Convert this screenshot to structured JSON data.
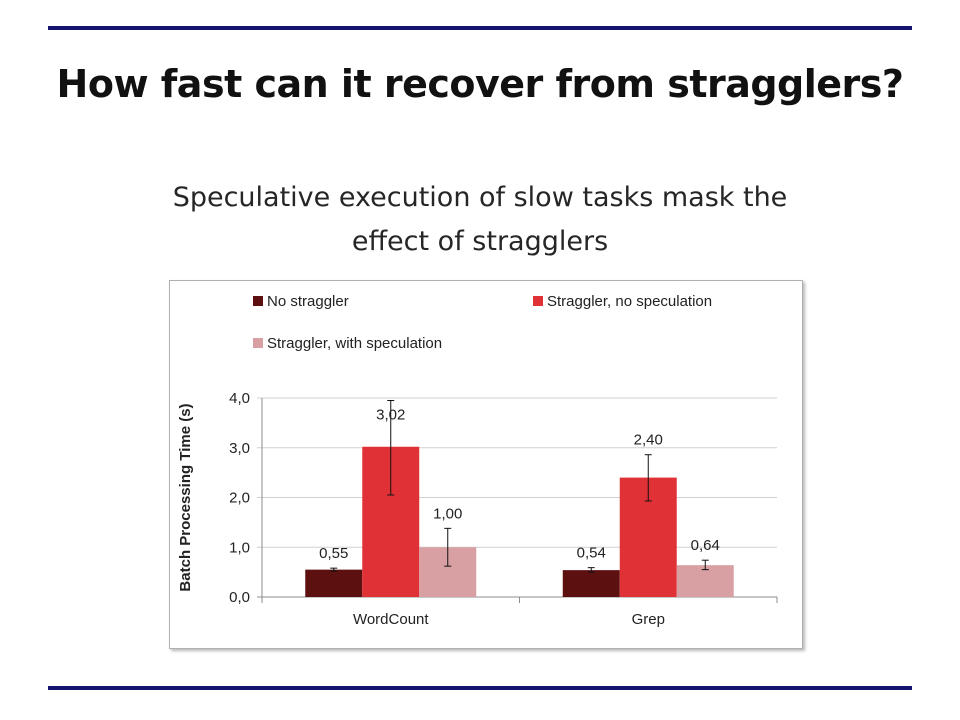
{
  "slide": {
    "title": "How fast can it recover from stragglers?",
    "subtitle_line1": "Speculative execution of slow tasks mask the",
    "subtitle_line2": "effect of stragglers"
  },
  "chart_data": {
    "type": "bar",
    "categories": [
      "WordCount",
      "Grep"
    ],
    "ylabel": "Batch Processing Time (s)",
    "ylim": [
      0,
      4
    ],
    "yticks": [
      0,
      1,
      2,
      3,
      4
    ],
    "ytick_labels": [
      "0,0",
      "1,0",
      "2,0",
      "3,0",
      "4,0"
    ],
    "grid": true,
    "legend_position": "top",
    "series": [
      {
        "name": "No straggler",
        "color": "#5c1010",
        "values": [
          0.55,
          0.54
        ],
        "labels": [
          "0,55",
          "0,54"
        ],
        "error": [
          [
            0.52,
            0.58
          ],
          [
            0.5,
            0.59
          ]
        ]
      },
      {
        "name": "Straggler, no speculation",
        "color": "#e03236",
        "values": [
          3.02,
          2.4
        ],
        "labels": [
          "3,02",
          "2,40"
        ],
        "error": [
          [
            2.05,
            3.95
          ],
          [
            1.93,
            2.86
          ]
        ]
      },
      {
        "name": "Straggler, with speculation",
        "color": "#d9a0a3",
        "values": [
          1.0,
          0.64
        ],
        "labels": [
          "1,00",
          "0,64"
        ],
        "error": [
          [
            0.62,
            1.38
          ],
          [
            0.55,
            0.74
          ]
        ]
      }
    ]
  }
}
